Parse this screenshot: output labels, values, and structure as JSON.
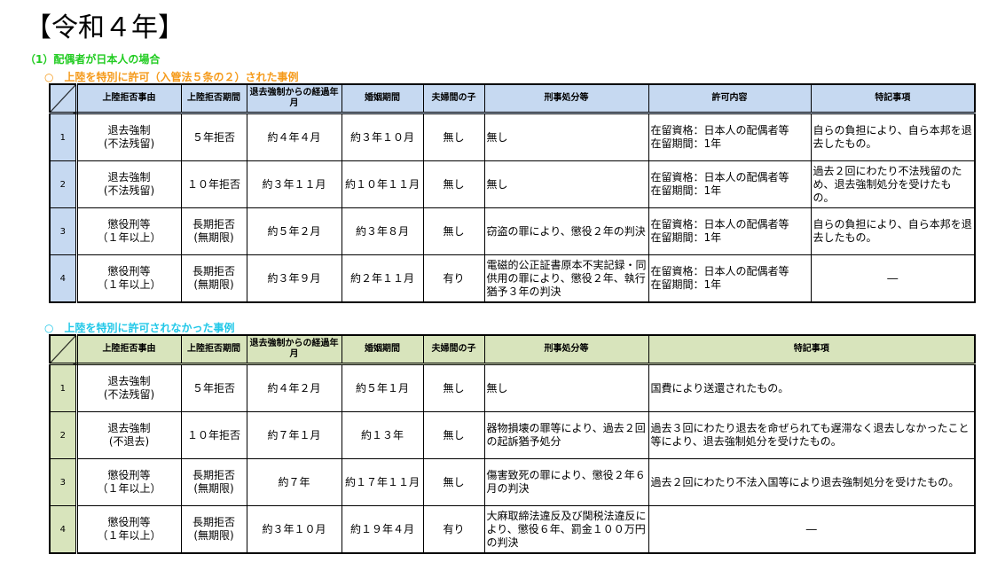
{
  "title": "【令和４年】",
  "subtitle": "（1）配偶者が日本人の場合",
  "colors": {
    "subtitle": "#22cc22",
    "section1": "#f59a1a",
    "section2": "#22c8e8",
    "table1_header": "#c6d9f1",
    "table2_header": "#d8e4bc"
  },
  "section1": {
    "heading": "○　上陸を特別に許可（入管法５条の２）された事例",
    "headers": [
      "上陸拒否事由",
      "上陸拒否期間",
      "退去強制からの経過年月",
      "婚姻期間",
      "夫婦間の子",
      "刑事処分等",
      "許可内容",
      "特記事項"
    ],
    "rows": [
      {
        "no": "1",
        "reason": "退去強制\n(不法残留)",
        "period": "５年拒否",
        "elapsed": "約４年４月",
        "marriage": "約３年１０月",
        "child": "無し",
        "criminal": "無し",
        "permit": "在留資格：日本人の配偶者等\n在留期間：1年",
        "notes": "自らの負担により、自ら本邦を退去したもの。"
      },
      {
        "no": "2",
        "reason": "退去強制\n(不法残留)",
        "period": "１０年拒否",
        "elapsed": "約３年１１月",
        "marriage": "約１０年１１月",
        "child": "無し",
        "criminal": "無し",
        "permit": "在留資格：日本人の配偶者等\n在留期間：1年",
        "notes": "過去２回にわたり不法残留のため、退去強制処分を受けたもの。"
      },
      {
        "no": "3",
        "reason": "懲役刑等\n（１年以上）",
        "period": "長期拒否\n(無期限)",
        "elapsed": "約５年２月",
        "marriage": "約３年８月",
        "child": "無し",
        "criminal": "窃盗の罪により、懲役２年の判決",
        "permit": "在留資格：日本人の配偶者等\n在留期間：1年",
        "notes": "自らの負担により、自ら本邦を退去したもの。"
      },
      {
        "no": "4",
        "reason": "懲役刑等\n（１年以上）",
        "period": "長期拒否\n(無期限)",
        "elapsed": "約３年９月",
        "marriage": "約２年１１月",
        "child": "有り",
        "criminal": "電磁的公正証書原本不実記録・同供用の罪により、懲役２年、執行猶予３年の判決",
        "permit": "在留資格：日本人の配偶者等\n在留期間：1年",
        "notes": "―"
      }
    ]
  },
  "section2": {
    "heading": "○　上陸を特別に許可されなかった事例",
    "headers": [
      "上陸拒否事由",
      "上陸拒否期間",
      "退去強制からの経過年月",
      "婚姻期間",
      "夫婦間の子",
      "刑事処分等",
      "特記事項"
    ],
    "rows": [
      {
        "no": "1",
        "reason": "退去強制\n(不法残留)",
        "period": "５年拒否",
        "elapsed": "約４年２月",
        "marriage": "約５年１月",
        "child": "無し",
        "criminal": "無し",
        "notes": "国費により送還されたもの。"
      },
      {
        "no": "2",
        "reason": "退去強制\n(不退去)",
        "period": "１０年拒否",
        "elapsed": "約７年１月",
        "marriage": "約１３年",
        "child": "無し",
        "criminal": "器物損壊の罪等により、過去２回の起訴猶予処分",
        "notes": "過去３回にわたり退去を命ぜられても遅滞なく退去しなかったこと等により、退去強制処分を受けたもの。"
      },
      {
        "no": "3",
        "reason": "懲役刑等\n（１年以上）",
        "period": "長期拒否\n(無期限)",
        "elapsed": "約７年",
        "marriage": "約１７年１１月",
        "child": "無し",
        "criminal": "傷害致死の罪により、懲役２年６月の判決",
        "notes": "過去２回にわたり不法入国等により退去強制処分を受けたもの。"
      },
      {
        "no": "4",
        "reason": "懲役刑等\n（１年以上）",
        "period": "長期拒否\n(無期限)",
        "elapsed": "約３年１０月",
        "marriage": "約１９年４月",
        "child": "有り",
        "criminal": "大麻取締法違反及び関税法違反により、懲役６年、罰金１００万円の判決",
        "notes": "―"
      }
    ]
  }
}
